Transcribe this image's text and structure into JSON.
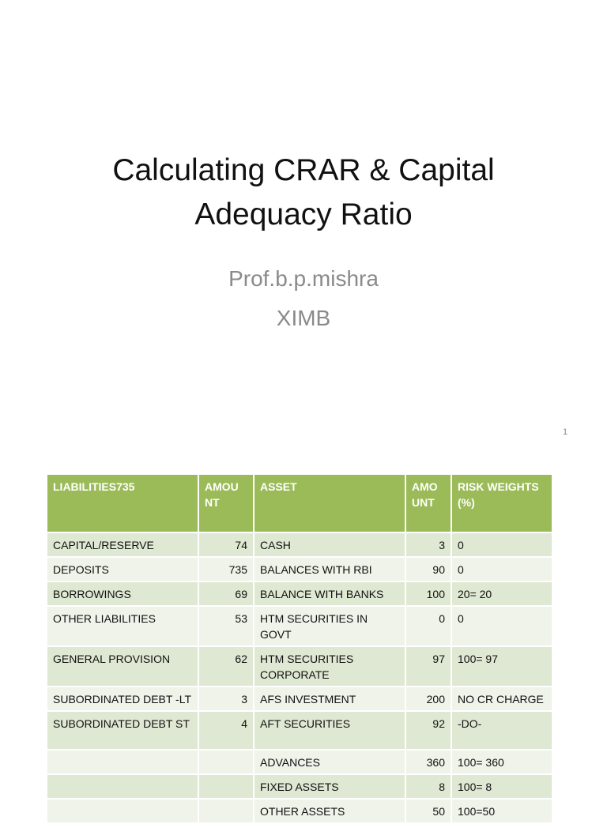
{
  "slide": {
    "title_line1": "Calculating CRAR & Capital",
    "title_line2": "Adequacy Ratio",
    "author": "Prof.b.p.mishra",
    "institution": "XIMB",
    "page_number": "1"
  },
  "table": {
    "headers": {
      "liabilities": "LIABILITIES735",
      "amount1_line1": "AMOU",
      "amount1_line2": "NT",
      "asset": "ASSET",
      "amount2_line1": "AMO",
      "amount2_line2": "UNT",
      "risk_line1": "RISK WEIGHTS",
      "risk_line2": "(%)"
    },
    "rows": [
      {
        "liability": "CAPITAL/RESERVE",
        "l_amount": "74",
        "asset_line1": "CASH",
        "asset_line2": "",
        "a_amount": "3",
        "risk": "0"
      },
      {
        "liability": "DEPOSITS",
        "l_amount": "735",
        "asset_line1": "BALANCES WITH RBI",
        "asset_line2": "",
        "a_amount": "90",
        "risk": "0"
      },
      {
        "liability": "BORROWINGS",
        "l_amount": "69",
        "asset_line1": "BALANCE WITH BANKS",
        "asset_line2": "",
        "a_amount": "100",
        "risk": "20= 20"
      },
      {
        "liability": "OTHER LIABILITIES",
        "l_amount": "53",
        "asset_line1": "HTM SECURITIES IN",
        "asset_line2": "GOVT",
        "a_amount": "0",
        "risk": "0"
      },
      {
        "liability": "GENERAL PROVISION",
        "l_amount": "62",
        "asset_line1": "HTM SECURITIES",
        "asset_line2": "CORPORATE",
        "a_amount": "97",
        "risk": "100= 97"
      },
      {
        "liability": "SUBORDINATED DEBT -LT",
        "l_amount": "3",
        "asset_line1": "AFS INVESTMENT",
        "asset_line2": "",
        "a_amount": "200",
        "risk": "NO CR CHARGE"
      },
      {
        "liability": "SUBORDINATED DEBT ST",
        "l_amount": "4",
        "asset_line1": "AFT SECURITIES",
        "asset_line2": "",
        "a_amount": "92",
        "risk": "-DO-"
      },
      {
        "liability": "",
        "l_amount": "",
        "asset_line1": "ADVANCES",
        "asset_line2": "",
        "a_amount": "360",
        "risk": "100= 360"
      },
      {
        "liability": "",
        "l_amount": "",
        "asset_line1": "FIXED ASSETS",
        "asset_line2": "",
        "a_amount": "8",
        "risk": "100= 8"
      },
      {
        "liability": "",
        "l_amount": "",
        "asset_line1": "OTHER ASSETS",
        "asset_line2": "",
        "a_amount": "50",
        "risk": "100=50"
      }
    ]
  }
}
